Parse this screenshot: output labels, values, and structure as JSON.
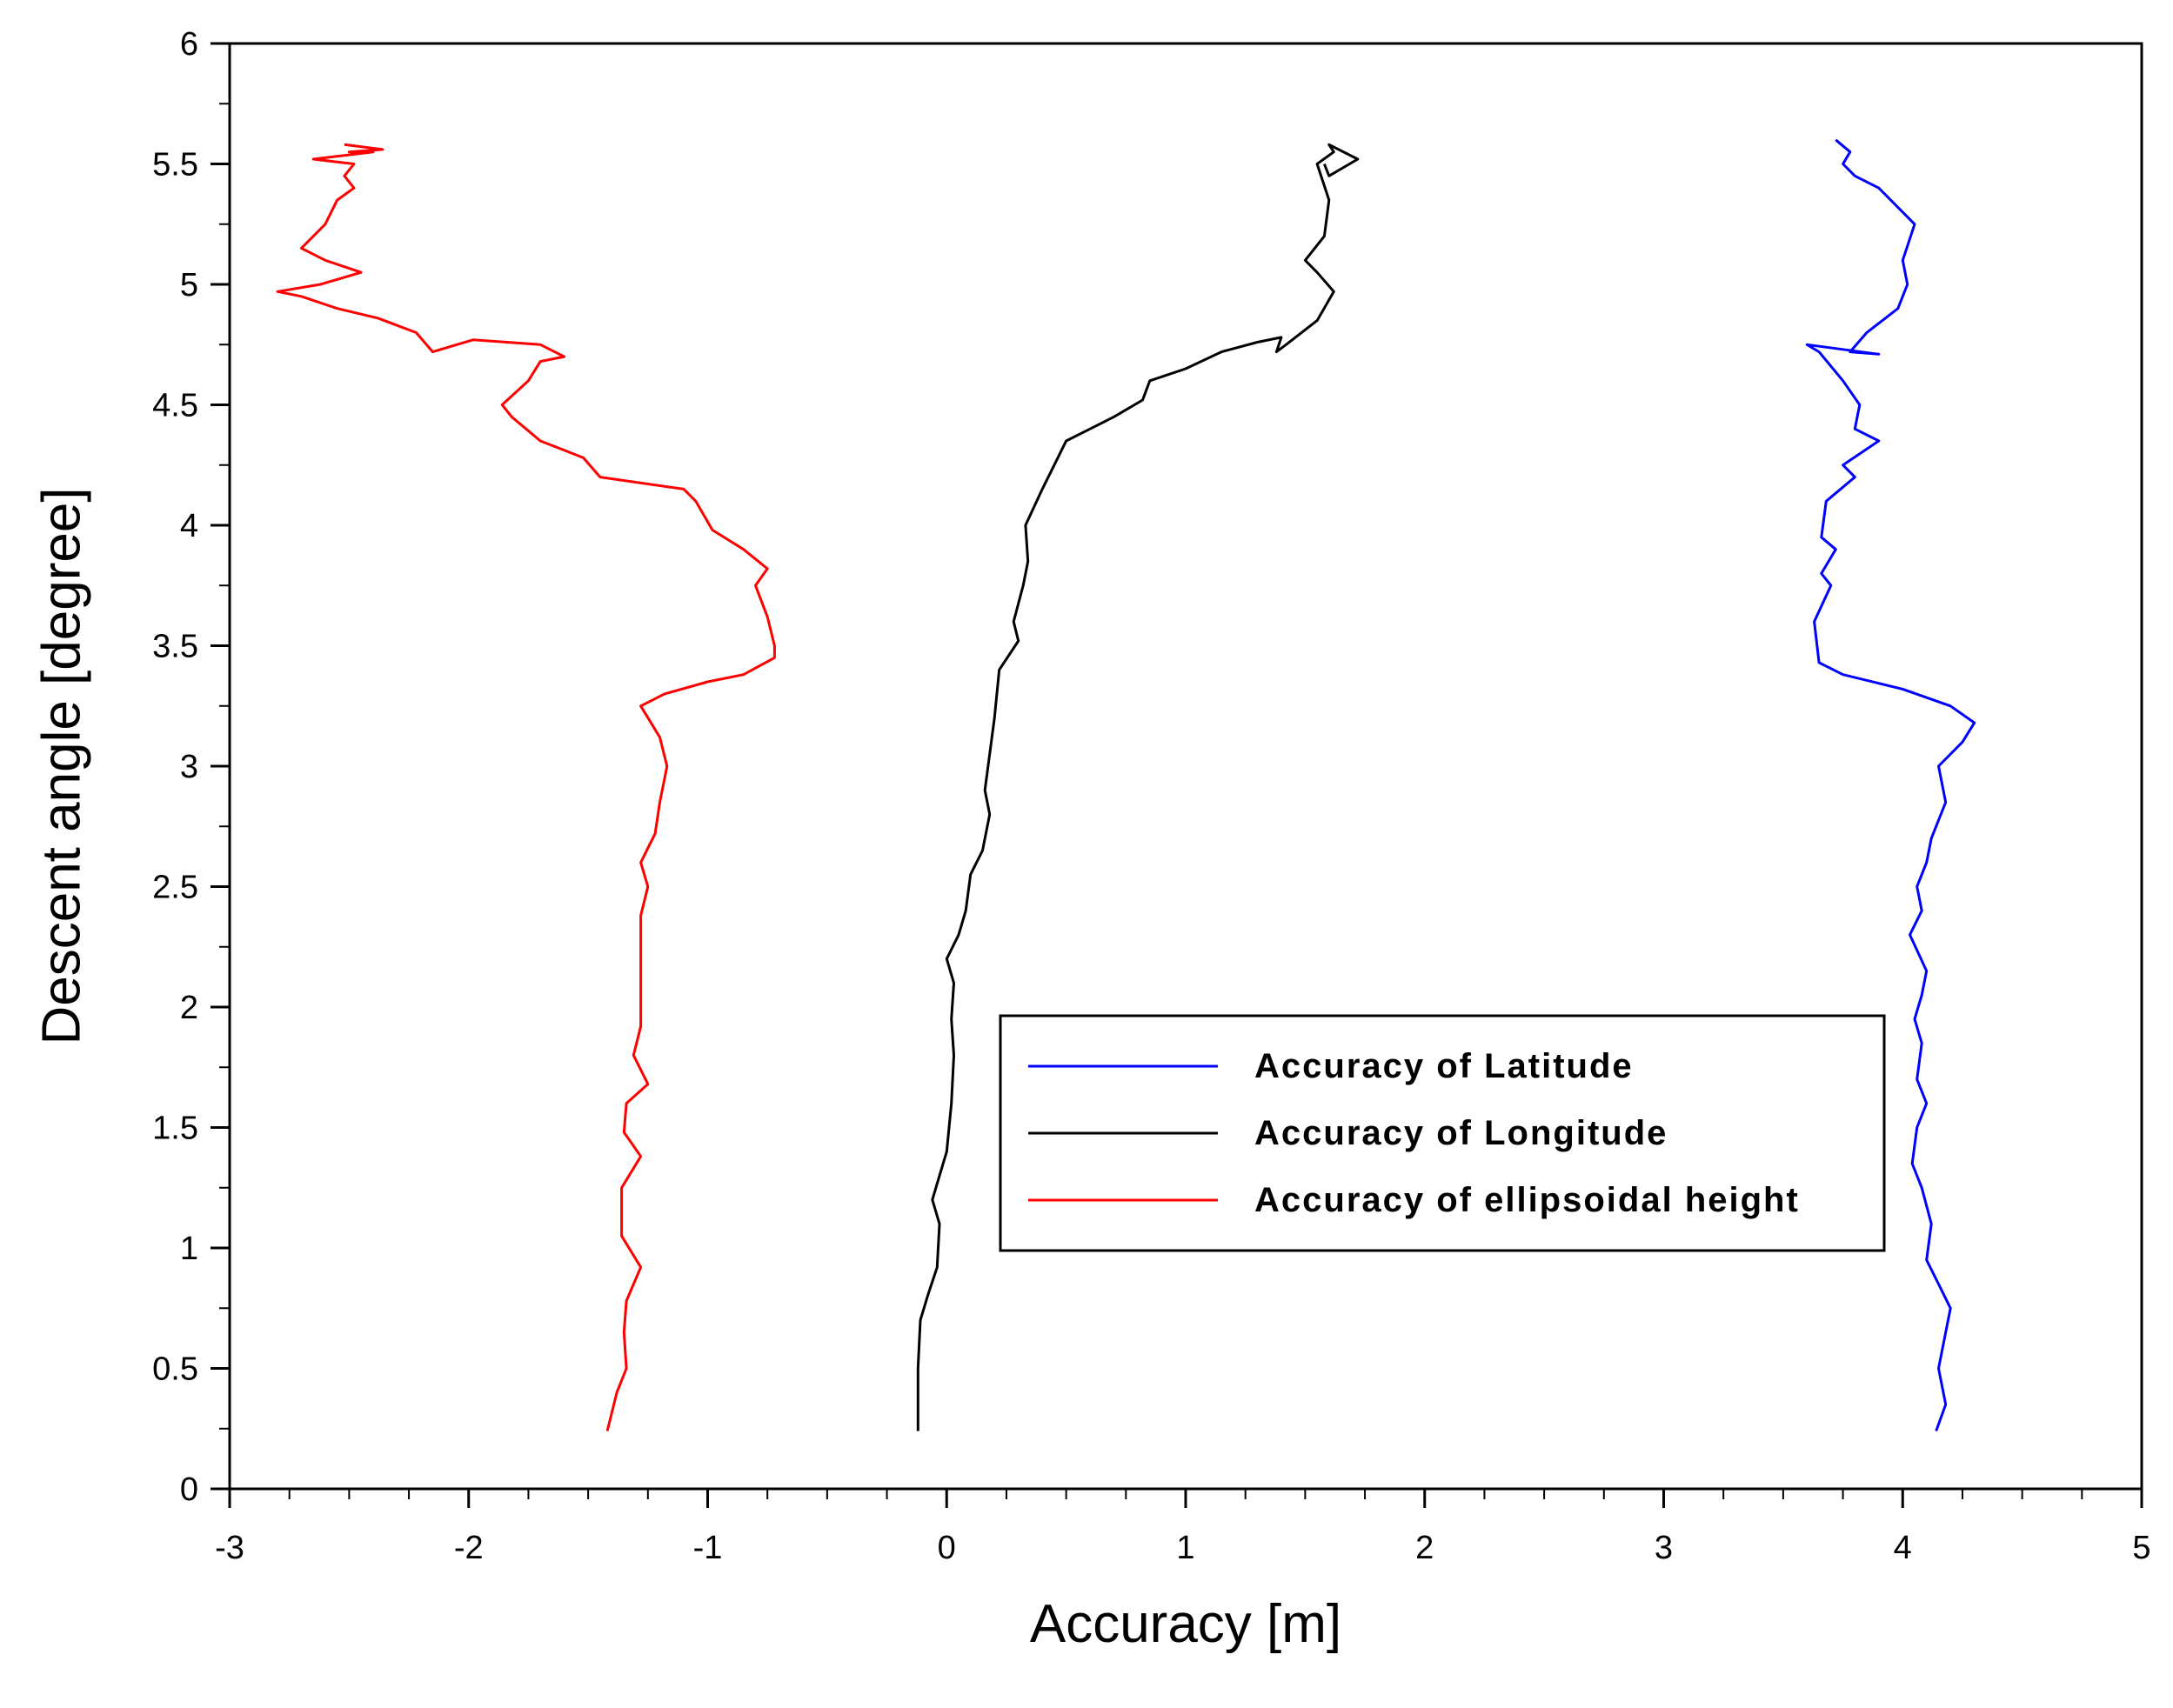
{
  "chart_data": {
    "type": "line",
    "title": "",
    "xlabel": "Accuracy [m]",
    "ylabel": "Descent angle [degree]",
    "xlim": [
      -3,
      5
    ],
    "ylim": [
      0,
      6
    ],
    "x_ticks": [
      "-3",
      "-2",
      "-1",
      "0",
      "1",
      "2",
      "3",
      "4",
      "5"
    ],
    "y_ticks": [
      "0",
      "0.5",
      "1",
      "1.5",
      "2",
      "2.5",
      "3",
      "3.5",
      "4",
      "4.5",
      "5",
      "5.5",
      "6"
    ],
    "grid": false,
    "legend_position": "lower-right",
    "series": [
      {
        "name": "Accuracy of Latitude",
        "color": "#0000ff",
        "points": [
          [
            4.14,
            0.24
          ],
          [
            4.18,
            0.35
          ],
          [
            4.15,
            0.5
          ],
          [
            4.18,
            0.65
          ],
          [
            4.2,
            0.75
          ],
          [
            4.15,
            0.85
          ],
          [
            4.1,
            0.95
          ],
          [
            4.12,
            1.1
          ],
          [
            4.08,
            1.25
          ],
          [
            4.04,
            1.35
          ],
          [
            4.06,
            1.5
          ],
          [
            4.1,
            1.6
          ],
          [
            4.06,
            1.7
          ],
          [
            4.08,
            1.85
          ],
          [
            4.05,
            1.95
          ],
          [
            4.08,
            2.05
          ],
          [
            4.1,
            2.15
          ],
          [
            4.03,
            2.3
          ],
          [
            4.08,
            2.4
          ],
          [
            4.06,
            2.5
          ],
          [
            4.1,
            2.6
          ],
          [
            4.12,
            2.7
          ],
          [
            4.18,
            2.85
          ],
          [
            4.15,
            3.0
          ],
          [
            4.25,
            3.1
          ],
          [
            4.3,
            3.18
          ],
          [
            4.2,
            3.25
          ],
          [
            4.0,
            3.32
          ],
          [
            3.75,
            3.38
          ],
          [
            3.65,
            3.43
          ],
          [
            3.63,
            3.6
          ],
          [
            3.7,
            3.75
          ],
          [
            3.66,
            3.8
          ],
          [
            3.72,
            3.9
          ],
          [
            3.66,
            3.95
          ],
          [
            3.68,
            4.1
          ],
          [
            3.8,
            4.2
          ],
          [
            3.75,
            4.25
          ],
          [
            3.9,
            4.35
          ],
          [
            3.8,
            4.4
          ],
          [
            3.82,
            4.5
          ],
          [
            3.75,
            4.6
          ],
          [
            3.65,
            4.72
          ],
          [
            3.6,
            4.75
          ],
          [
            3.9,
            4.71
          ],
          [
            3.78,
            4.72
          ],
          [
            3.85,
            4.8
          ],
          [
            3.98,
            4.9
          ],
          [
            4.02,
            5.0
          ],
          [
            4.0,
            5.1
          ],
          [
            4.05,
            5.25
          ],
          [
            3.95,
            5.35
          ],
          [
            3.9,
            5.4
          ],
          [
            3.8,
            5.45
          ],
          [
            3.75,
            5.5
          ],
          [
            3.78,
            5.55
          ],
          [
            3.72,
            5.6
          ]
        ]
      },
      {
        "name": "Accuracy of Longitude",
        "color": "#000000",
        "points": [
          [
            -0.12,
            0.24
          ],
          [
            -0.12,
            0.5
          ],
          [
            -0.11,
            0.7
          ],
          [
            -0.08,
            0.8
          ],
          [
            -0.04,
            0.92
          ],
          [
            -0.03,
            1.1
          ],
          [
            -0.06,
            1.2
          ],
          [
            -0.03,
            1.3
          ],
          [
            0.0,
            1.4
          ],
          [
            0.02,
            1.6
          ],
          [
            0.03,
            1.8
          ],
          [
            0.02,
            1.95
          ],
          [
            0.03,
            2.1
          ],
          [
            0.0,
            2.2
          ],
          [
            0.05,
            2.3
          ],
          [
            0.08,
            2.4
          ],
          [
            0.1,
            2.55
          ],
          [
            0.15,
            2.65
          ],
          [
            0.18,
            2.8
          ],
          [
            0.16,
            2.9
          ],
          [
            0.18,
            3.05
          ],
          [
            0.2,
            3.2
          ],
          [
            0.22,
            3.4
          ],
          [
            0.3,
            3.52
          ],
          [
            0.28,
            3.6
          ],
          [
            0.32,
            3.75
          ],
          [
            0.34,
            3.85
          ],
          [
            0.33,
            4.0
          ],
          [
            0.4,
            4.15
          ],
          [
            0.45,
            4.25
          ],
          [
            0.5,
            4.35
          ],
          [
            0.6,
            4.4
          ],
          [
            0.7,
            4.45
          ],
          [
            0.82,
            4.52
          ],
          [
            0.85,
            4.6
          ],
          [
            1.0,
            4.65
          ],
          [
            1.15,
            4.72
          ],
          [
            1.3,
            4.76
          ],
          [
            1.4,
            4.78
          ],
          [
            1.38,
            4.72
          ],
          [
            1.42,
            4.75
          ],
          [
            1.55,
            4.85
          ],
          [
            1.62,
            4.97
          ],
          [
            1.55,
            5.05
          ],
          [
            1.5,
            5.1
          ],
          [
            1.58,
            5.2
          ],
          [
            1.6,
            5.35
          ],
          [
            1.55,
            5.5
          ],
          [
            1.62,
            5.55
          ],
          [
            1.6,
            5.58
          ],
          [
            1.72,
            5.52
          ],
          [
            1.6,
            5.45
          ],
          [
            1.58,
            5.5
          ]
        ]
      },
      {
        "name": "Accuracy of ellipsoidal height",
        "color": "#ff0000",
        "points": [
          [
            -1.42,
            0.24
          ],
          [
            -1.38,
            0.4
          ],
          [
            -1.34,
            0.5
          ],
          [
            -1.35,
            0.65
          ],
          [
            -1.34,
            0.78
          ],
          [
            -1.28,
            0.92
          ],
          [
            -1.36,
            1.05
          ],
          [
            -1.36,
            1.25
          ],
          [
            -1.28,
            1.38
          ],
          [
            -1.35,
            1.48
          ],
          [
            -1.34,
            1.6
          ],
          [
            -1.25,
            1.68
          ],
          [
            -1.31,
            1.8
          ],
          [
            -1.28,
            1.92
          ],
          [
            -1.28,
            2.1
          ],
          [
            -1.28,
            2.2
          ],
          [
            -1.28,
            2.38
          ],
          [
            -1.25,
            2.5
          ],
          [
            -1.28,
            2.6
          ],
          [
            -1.22,
            2.72
          ],
          [
            -1.2,
            2.85
          ],
          [
            -1.17,
            3.0
          ],
          [
            -1.2,
            3.12
          ],
          [
            -1.28,
            3.25
          ],
          [
            -1.18,
            3.3
          ],
          [
            -1.0,
            3.35
          ],
          [
            -0.85,
            3.38
          ],
          [
            -0.72,
            3.45
          ],
          [
            -0.72,
            3.5
          ],
          [
            -0.75,
            3.62
          ],
          [
            -0.8,
            3.75
          ],
          [
            -0.75,
            3.82
          ],
          [
            -0.85,
            3.9
          ],
          [
            -0.98,
            3.98
          ],
          [
            -1.05,
            4.1
          ],
          [
            -1.1,
            4.15
          ],
          [
            -1.45,
            4.2
          ],
          [
            -1.52,
            4.28
          ],
          [
            -1.7,
            4.35
          ],
          [
            -1.82,
            4.45
          ],
          [
            -1.86,
            4.5
          ],
          [
            -1.75,
            4.6
          ],
          [
            -1.7,
            4.68
          ],
          [
            -1.6,
            4.7
          ],
          [
            -1.7,
            4.75
          ],
          [
            -1.98,
            4.77
          ],
          [
            -2.05,
            4.75
          ],
          [
            -2.15,
            4.72
          ],
          [
            -2.22,
            4.8
          ],
          [
            -2.38,
            4.86
          ],
          [
            -2.55,
            4.9
          ],
          [
            -2.7,
            4.95
          ],
          [
            -2.8,
            4.97
          ],
          [
            -2.62,
            5.0
          ],
          [
            -2.45,
            5.05
          ],
          [
            -2.6,
            5.1
          ],
          [
            -2.7,
            5.15
          ],
          [
            -2.6,
            5.25
          ],
          [
            -2.55,
            5.35
          ],
          [
            -2.48,
            5.4
          ],
          [
            -2.52,
            5.45
          ],
          [
            -2.48,
            5.5
          ],
          [
            -2.65,
            5.52
          ],
          [
            -2.4,
            5.55
          ],
          [
            -2.5,
            5.55
          ],
          [
            -2.36,
            5.56
          ],
          [
            -2.52,
            5.58
          ]
        ]
      }
    ]
  }
}
